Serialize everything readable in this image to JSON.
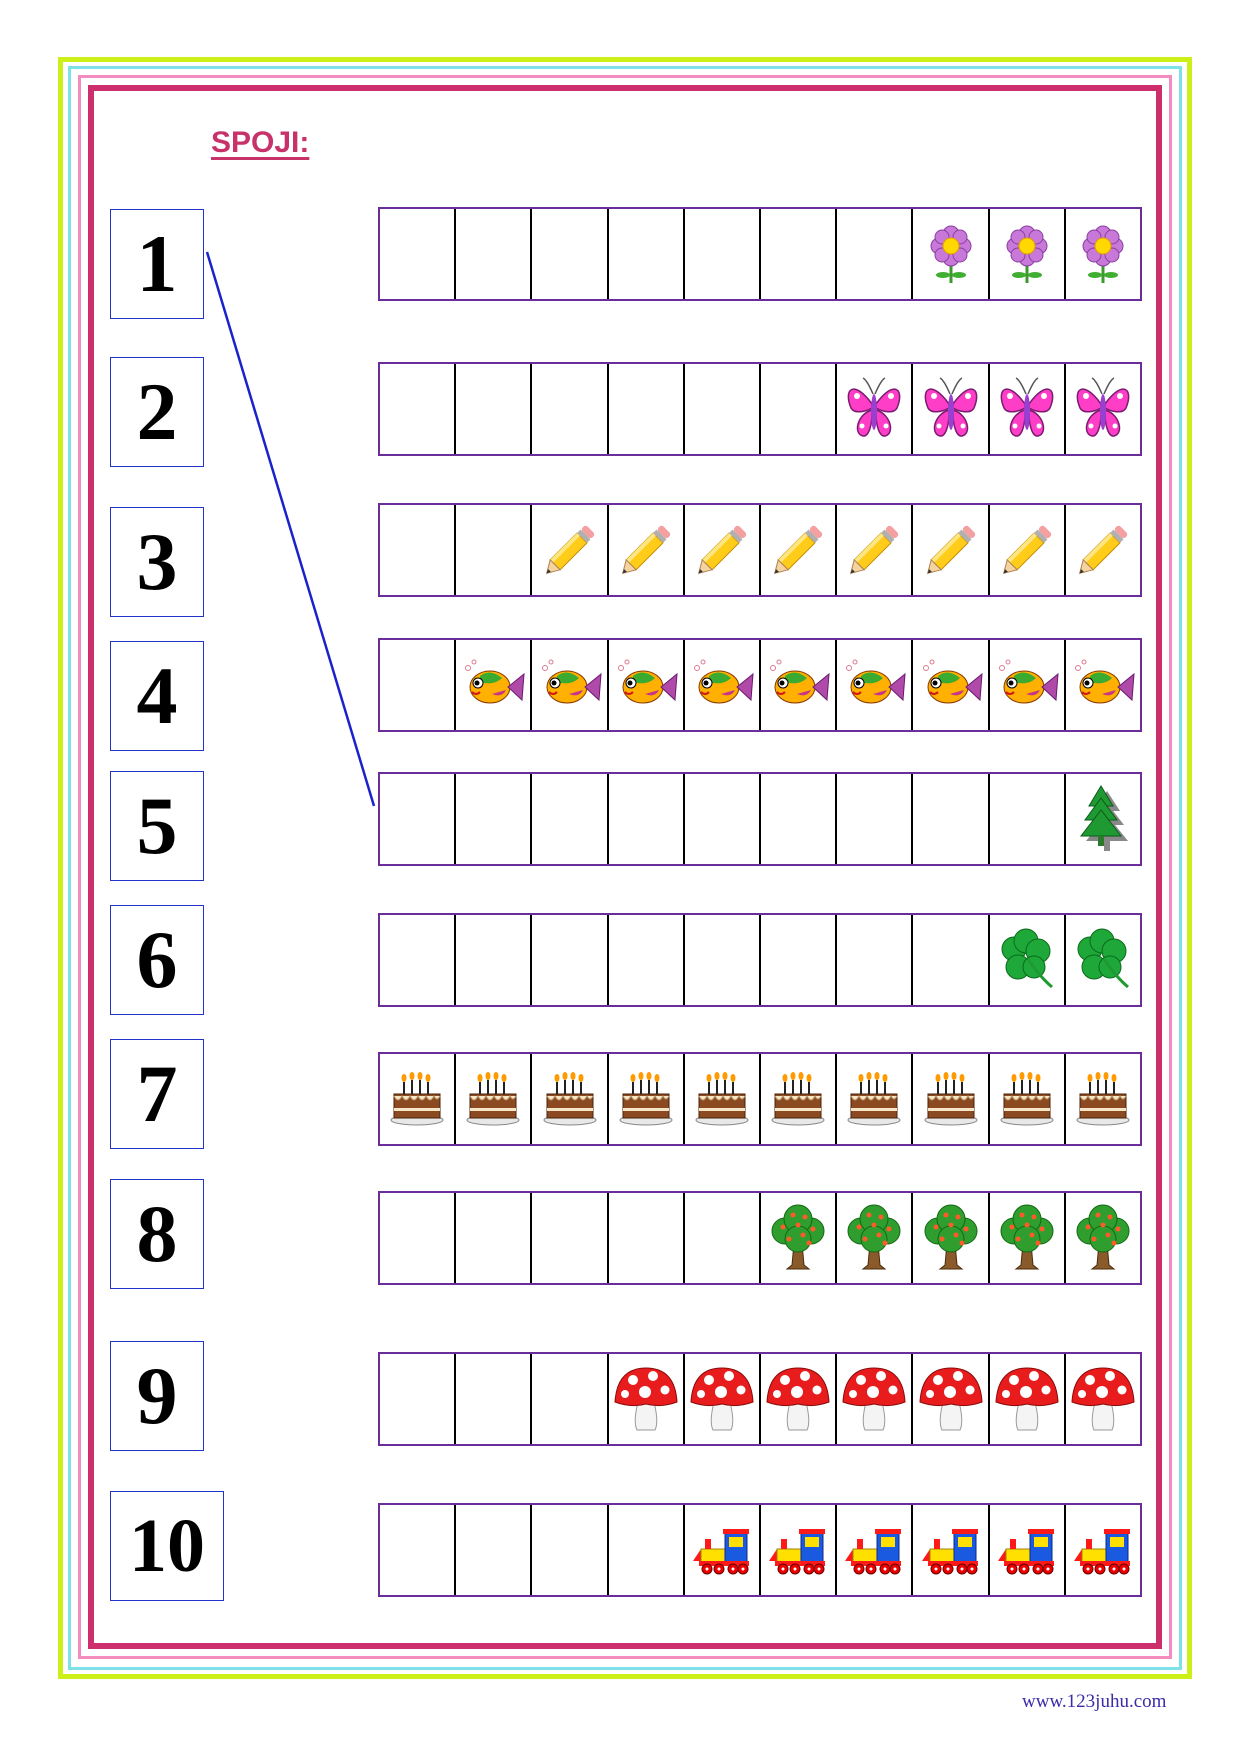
{
  "title": "SPOJI:",
  "footer": "www.123juhu.com",
  "colors": {
    "border_outer": "#ccf018",
    "border_cyan": "#7ee0e8",
    "border_pink": "#f58cc0",
    "border_inner": "#cc2f6b",
    "title": "#c8326a",
    "number_box": "#2233cc",
    "strip_border": "#6a2d9a",
    "connector_line": "#1a22cc"
  },
  "numbers": [
    "1",
    "2",
    "3",
    "4",
    "5",
    "6",
    "7",
    "8",
    "9",
    "10"
  ],
  "rows": [
    {
      "picture": "flower-icon",
      "count": 3
    },
    {
      "picture": "butterfly-icon",
      "count": 4
    },
    {
      "picture": "pencil-icon",
      "count": 8
    },
    {
      "picture": "fish-icon",
      "count": 9
    },
    {
      "picture": "fir-tree-icon",
      "count": 1
    },
    {
      "picture": "clover-icon",
      "count": 2
    },
    {
      "picture": "cake-icon",
      "count": 10
    },
    {
      "picture": "apple-tree-icon",
      "count": 5
    },
    {
      "picture": "mushroom-icon",
      "count": 7
    },
    {
      "picture": "train-icon",
      "count": 6
    }
  ],
  "cells_per_row": 10,
  "example_connection": {
    "from_number": "1",
    "to_row_count": 1
  }
}
